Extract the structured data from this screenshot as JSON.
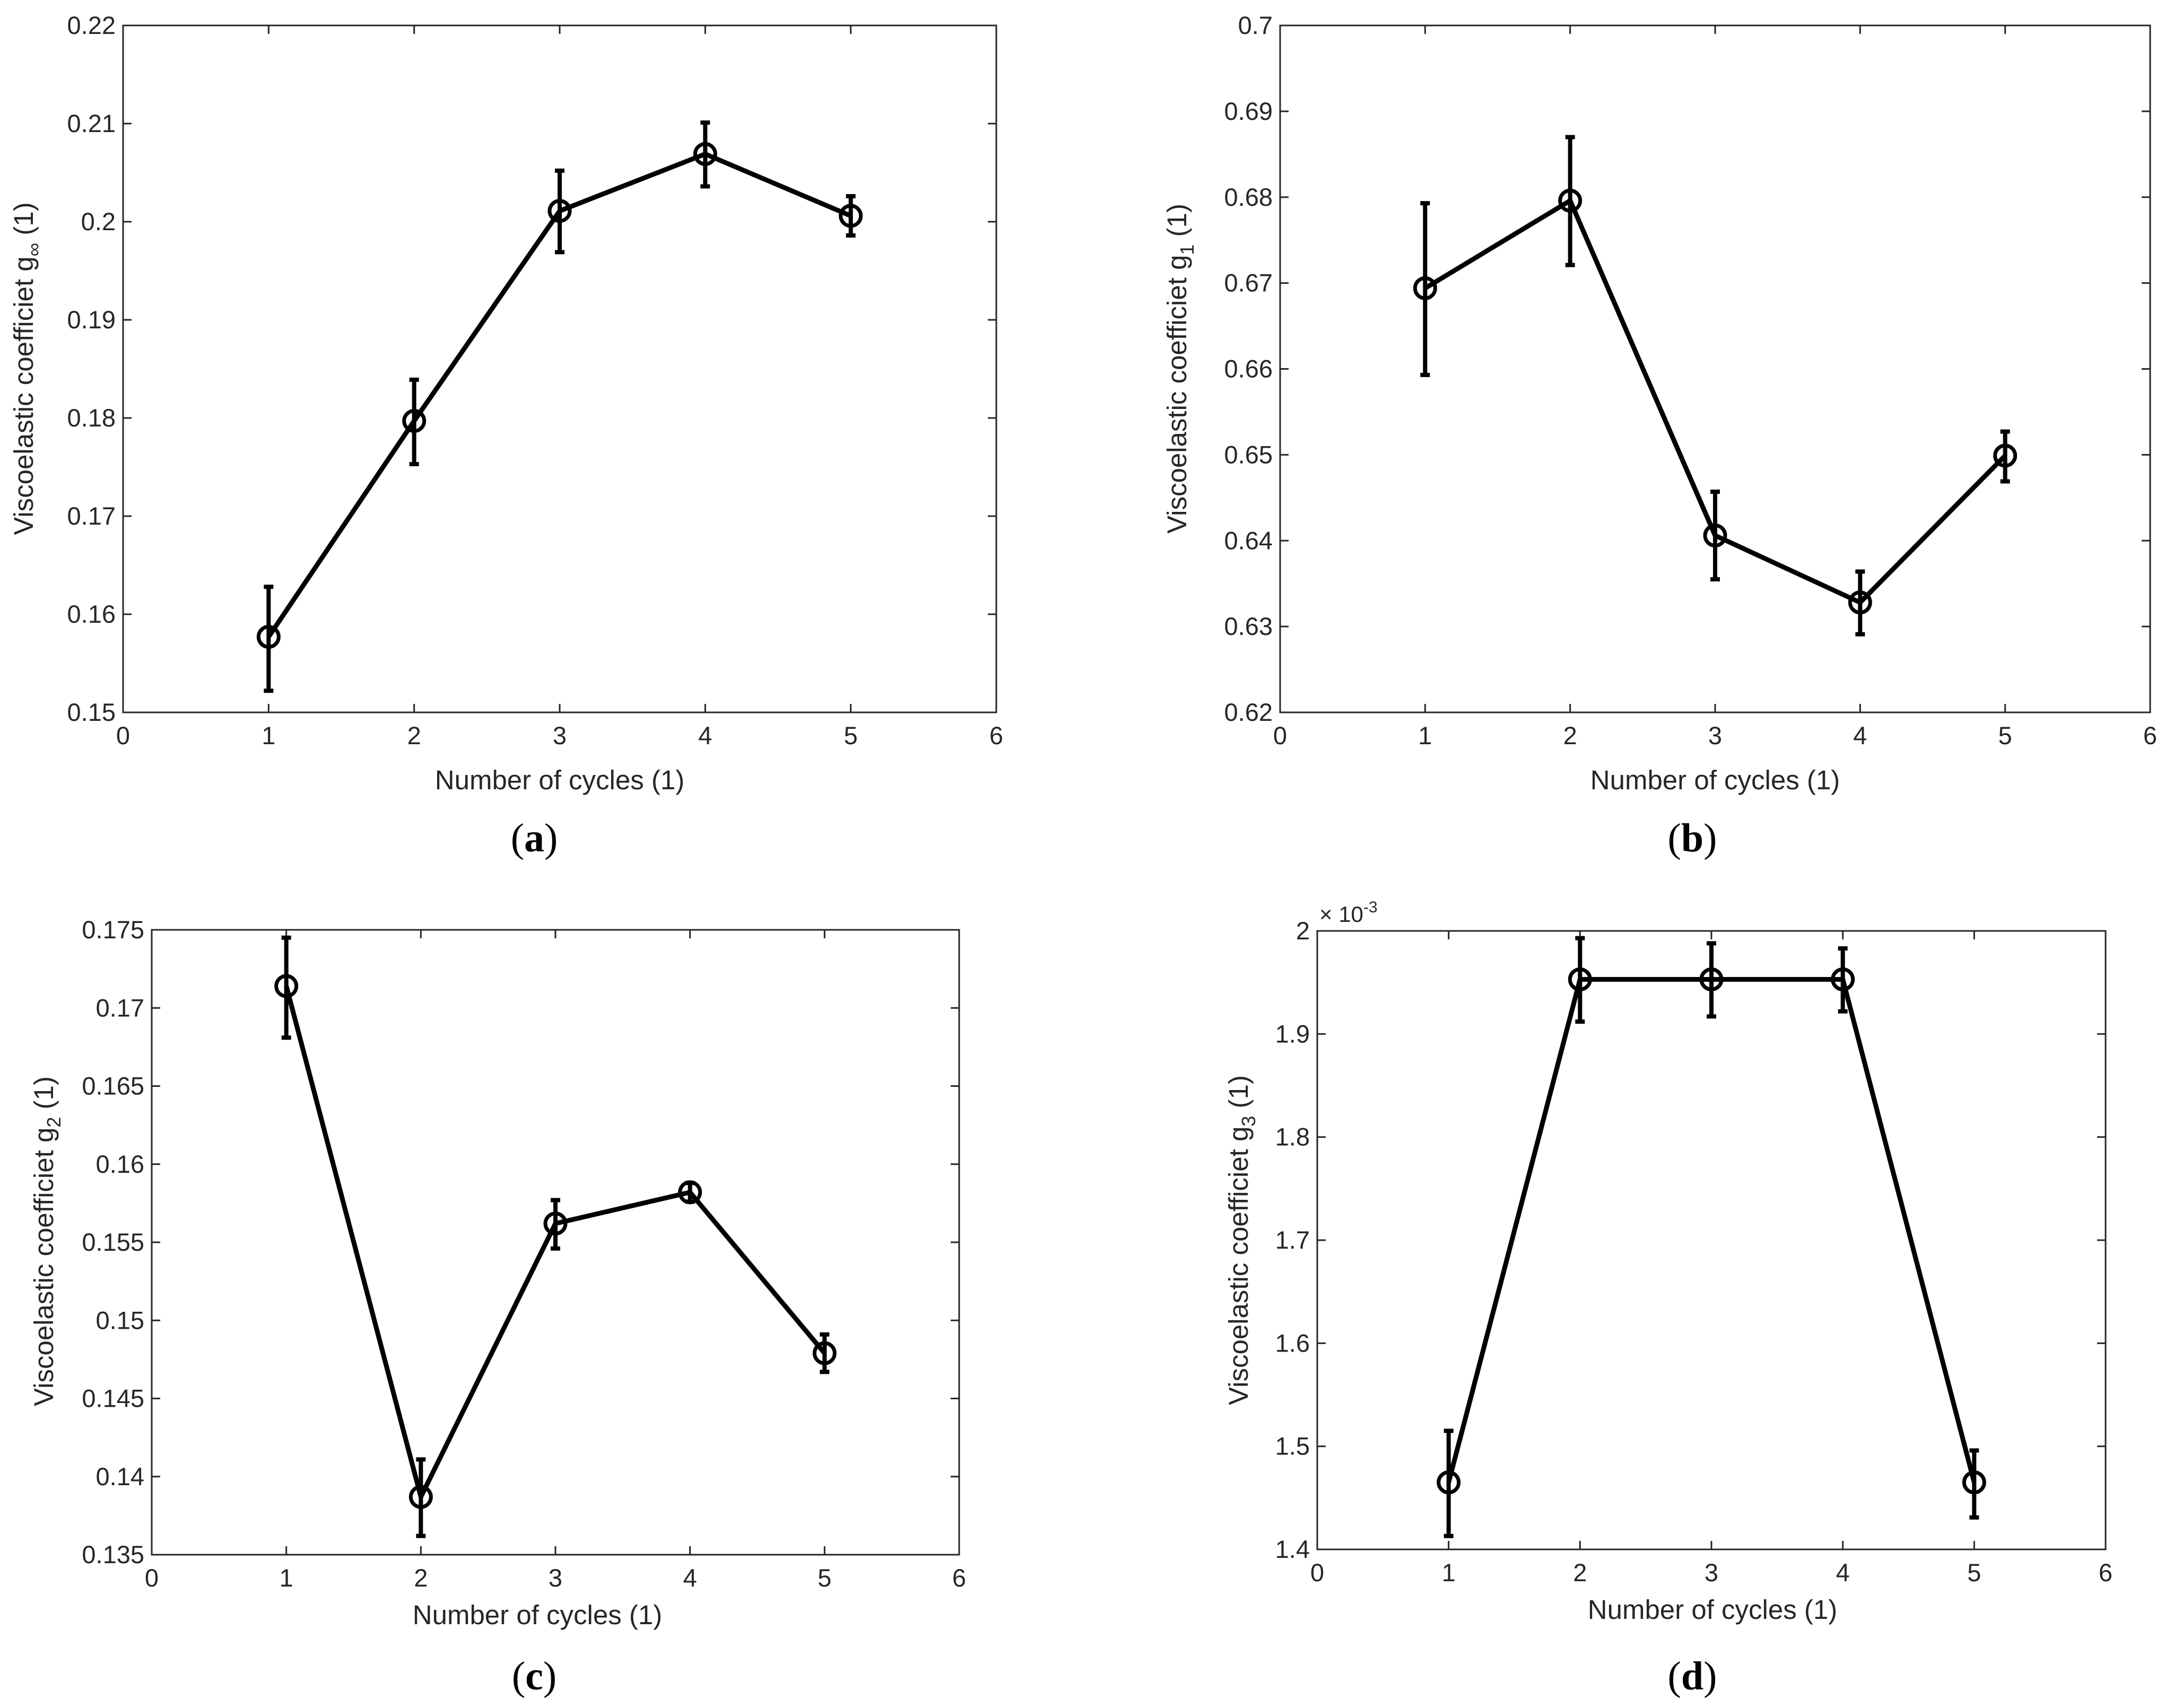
{
  "chart_data": [
    {
      "type": "line",
      "panel": "a",
      "xlabel": "Number of cycles (1)",
      "ylabel_main": "Viscoelastic coefficiet g",
      "ylabel_sub": "∞",
      "ylabel_unit": " (1)",
      "xlim": [
        0,
        6
      ],
      "ylim": [
        0.15,
        0.22
      ],
      "xticks": [
        "0",
        "1",
        "2",
        "3",
        "4",
        "5",
        "6"
      ],
      "yticks": [
        "0.15",
        "0.16",
        "0.17",
        "0.18",
        "0.19",
        "0.2",
        "0.21",
        "0.22"
      ],
      "exponent_label": "",
      "series": [
        {
          "name": "g∞",
          "x": [
            1,
            2,
            3,
            4,
            5
          ],
          "y": [
            0.1577,
            0.1797,
            0.2011,
            0.2069,
            0.2006
          ],
          "err_low": [
            0.1522,
            0.1753,
            0.1969,
            0.2036,
            0.1986
          ],
          "err_high": [
            0.1628,
            0.1839,
            0.2052,
            0.2101,
            0.2026
          ]
        }
      ]
    },
    {
      "type": "line",
      "panel": "b",
      "xlabel": "Number of cycles (1)",
      "ylabel_main": "Viscoelastic coefficiet g",
      "ylabel_sub": "1",
      "ylabel_unit": " (1)",
      "xlim": [
        0,
        6
      ],
      "ylim": [
        0.62,
        0.7
      ],
      "xticks": [
        "0",
        "1",
        "2",
        "3",
        "4",
        "5",
        "6"
      ],
      "yticks": [
        "0.62",
        "0.63",
        "0.64",
        "0.65",
        "0.66",
        "0.67",
        "0.68",
        "0.69",
        "0.7"
      ],
      "exponent_label": "",
      "series": [
        {
          "name": "g1",
          "x": [
            1,
            2,
            3,
            4,
            5
          ],
          "y": [
            0.6694,
            0.6796,
            0.6406,
            0.6328,
            0.6499
          ],
          "err_low": [
            0.6593,
            0.6721,
            0.6355,
            0.6291,
            0.6469
          ],
          "err_high": [
            0.6793,
            0.687,
            0.6457,
            0.6364,
            0.6527
          ]
        }
      ]
    },
    {
      "type": "line",
      "panel": "c",
      "xlabel": "Number of cycles (1)",
      "ylabel_main": "Viscoelastic coefficiet g",
      "ylabel_sub": "2",
      "ylabel_unit": " (1)",
      "xlim": [
        0,
        6
      ],
      "ylim": [
        0.135,
        0.175
      ],
      "xticks": [
        "0",
        "1",
        "2",
        "3",
        "4",
        "5",
        "6"
      ],
      "yticks": [
        "0.135",
        "0.14",
        "0.145",
        "0.15",
        "0.155",
        "0.16",
        "0.165",
        "0.17",
        "0.175"
      ],
      "exponent_label": "",
      "series": [
        {
          "name": "g2",
          "x": [
            1,
            2,
            3,
            4,
            5
          ],
          "y": [
            0.1714,
            0.1387,
            0.1562,
            0.1582,
            0.1479
          ],
          "err_low": [
            0.1681,
            0.1362,
            0.1546,
            0.1576,
            0.1467
          ],
          "err_high": [
            0.1745,
            0.1411,
            0.1577,
            0.1588,
            0.1491
          ]
        }
      ]
    },
    {
      "type": "line",
      "panel": "d",
      "xlabel": "Number of cycles (1)",
      "ylabel_main": "Viscoelastic coefficiet g",
      "ylabel_sub": "3",
      "ylabel_unit": " (1)",
      "xlim": [
        0,
        6
      ],
      "ylim": [
        1.4,
        2.0
      ],
      "xticks": [
        "0",
        "1",
        "2",
        "3",
        "4",
        "5",
        "6"
      ],
      "yticks": [
        "1.4",
        "1.5",
        "1.6",
        "1.7",
        "1.8",
        "1.9",
        "2"
      ],
      "exponent_label": "× 10",
      "exponent_power": "-3",
      "series": [
        {
          "name": "g3",
          "x": [
            1,
            2,
            3,
            4,
            5
          ],
          "y": [
            1.465,
            1.953,
            1.953,
            1.953,
            1.465
          ],
          "err_low": [
            1.413,
            1.912,
            1.917,
            1.922,
            1.431
          ],
          "err_high": [
            1.515,
            1.993,
            1.988,
            1.983,
            1.496
          ]
        }
      ]
    }
  ],
  "captions": [
    {
      "open": "(",
      "letter": "a",
      "close": ")"
    },
    {
      "open": "(",
      "letter": "b",
      "close": ")"
    },
    {
      "open": "(",
      "letter": "c",
      "close": ")"
    },
    {
      "open": "(",
      "letter": "d",
      "close": ")"
    }
  ]
}
